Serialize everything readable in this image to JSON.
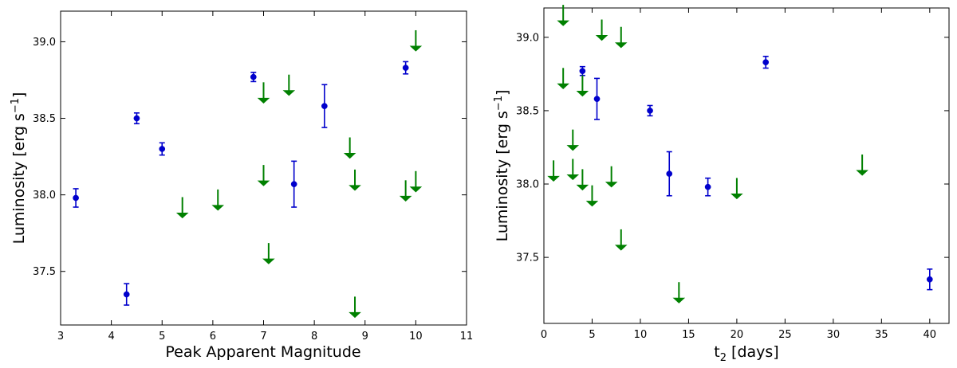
{
  "chart_data": [
    {
      "type": "scatter",
      "xlabel": "Peak Apparent Magnitude",
      "ylabel": "Luminosity [erg s",
      "ylabel_exponent": "−1",
      "ylabel_close": "]",
      "xlim": [
        3,
        11
      ],
      "ylim": [
        37.15,
        39.2
      ],
      "xticks": [
        "3",
        "4",
        "5",
        "6",
        "7",
        "8",
        "9",
        "10",
        "11"
      ],
      "yticks": [
        "37.5",
        "38.0",
        "38.5",
        "39.0"
      ],
      "grid": false,
      "colors": {
        "points": "#0000cc",
        "limits": "#008000"
      },
      "series": [
        {
          "kind": "measurement",
          "points": [
            {
              "x": 3.3,
              "y": 37.98,
              "err": 0.06
            },
            {
              "x": 4.3,
              "y": 37.35,
              "err": 0.07
            },
            {
              "x": 4.5,
              "y": 38.5,
              "err": 0.035
            },
            {
              "x": 5.0,
              "y": 38.3,
              "err": 0.04
            },
            {
              "x": 6.8,
              "y": 38.77,
              "err": 0.03
            },
            {
              "x": 7.6,
              "y": 38.07,
              "err": 0.15
            },
            {
              "x": 8.2,
              "y": 38.58,
              "err": 0.14
            },
            {
              "x": 9.8,
              "y": 38.83,
              "err": 0.04
            }
          ]
        },
        {
          "kind": "upper-limit",
          "points": [
            {
              "x": 5.4,
              "y": 37.85
            },
            {
              "x": 6.1,
              "y": 37.9
            },
            {
              "x": 7.0,
              "y": 38.06
            },
            {
              "x": 7.0,
              "y": 38.6
            },
            {
              "x": 7.1,
              "y": 37.55
            },
            {
              "x": 7.5,
              "y": 38.65
            },
            {
              "x": 8.7,
              "y": 38.24
            },
            {
              "x": 8.8,
              "y": 38.03
            },
            {
              "x": 8.8,
              "y": 37.2
            },
            {
              "x": 9.8,
              "y": 37.96
            },
            {
              "x": 10.0,
              "y": 38.02
            },
            {
              "x": 10.0,
              "y": 38.94
            }
          ]
        }
      ]
    },
    {
      "type": "scatter",
      "xlabel": "t",
      "xlabel_sub": "2",
      "xlabel_rest": " [days]",
      "ylabel": "Luminosity [erg s",
      "ylabel_exponent": "−1",
      "ylabel_close": "]",
      "xlim": [
        0,
        42
      ],
      "ylim": [
        37.05,
        39.2
      ],
      "xticks": [
        "0",
        "5",
        "10",
        "15",
        "20",
        "25",
        "30",
        "35",
        "40"
      ],
      "yticks": [
        "37.5",
        "38.0",
        "38.5",
        "39.0"
      ],
      "grid": false,
      "colors": {
        "points": "#0000cc",
        "limits": "#008000"
      },
      "series": [
        {
          "kind": "measurement",
          "points": [
            {
              "x": 4,
              "y": 38.77,
              "err": 0.03
            },
            {
              "x": 5.5,
              "y": 38.58,
              "err": 0.14
            },
            {
              "x": 11,
              "y": 38.5,
              "err": 0.035
            },
            {
              "x": 13,
              "y": 38.07,
              "err": 0.15
            },
            {
              "x": 17,
              "y": 37.98,
              "err": 0.06
            },
            {
              "x": 23,
              "y": 38.83,
              "err": 0.04
            },
            {
              "x": 40,
              "y": 37.35,
              "err": 0.07
            }
          ]
        },
        {
          "kind": "upper-limit",
          "points": [
            {
              "x": 1,
              "y": 38.02
            },
            {
              "x": 2,
              "y": 39.08
            },
            {
              "x": 2,
              "y": 38.65
            },
            {
              "x": 3,
              "y": 38.23
            },
            {
              "x": 3,
              "y": 38.03
            },
            {
              "x": 4,
              "y": 38.6
            },
            {
              "x": 4,
              "y": 37.96
            },
            {
              "x": 5,
              "y": 37.85
            },
            {
              "x": 6,
              "y": 38.98
            },
            {
              "x": 7,
              "y": 37.98
            },
            {
              "x": 8,
              "y": 38.93
            },
            {
              "x": 8,
              "y": 37.55
            },
            {
              "x": 14,
              "y": 37.19
            },
            {
              "x": 20,
              "y": 37.9
            },
            {
              "x": 33,
              "y": 38.06
            }
          ]
        }
      ]
    }
  ]
}
